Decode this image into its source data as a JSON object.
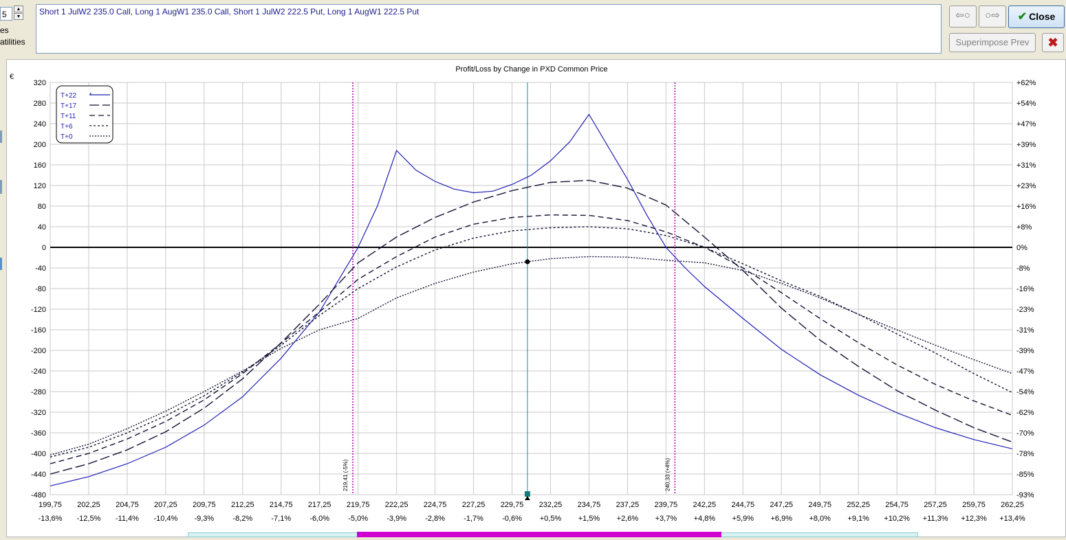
{
  "top": {
    "spinner_value": "5",
    "left_labels": [
      "es",
      "atilities"
    ],
    "strategy_text": "Short 1 JulW2 235.0 Call, Long 1 AugW1 235.0 Call, Short 1 JulW2 222.5 Put, Long 1 AugW1 222.5 Put",
    "close_label": "Close",
    "superimpose_label": "Superimpose Prev"
  },
  "icons": {
    "back": "back-arrow-icon",
    "forward": "forward-arrow-icon",
    "close": "checkmark-icon",
    "cancel": "x-icon"
  },
  "chart_data": {
    "type": "line",
    "title": "Profit/Loss by Change in PXD Common Price",
    "currency_symbol": "€",
    "xlim": [
      199.75,
      262.25
    ],
    "ylim": [
      -480,
      320
    ],
    "x_ticks": [
      199.75,
      202.25,
      204.75,
      207.25,
      209.75,
      212.25,
      214.75,
      217.25,
      219.75,
      222.25,
      224.75,
      227.25,
      229.75,
      232.25,
      234.75,
      237.25,
      239.75,
      242.25,
      244.75,
      247.25,
      249.75,
      252.25,
      254.75,
      257.25,
      259.75,
      262.25
    ],
    "x_tick_labels": [
      "199,75",
      "202,25",
      "204,75",
      "207,25",
      "209,75",
      "212,25",
      "214,75",
      "217,25",
      "219,75",
      "222,25",
      "224,75",
      "227,25",
      "229,75",
      "232,25",
      "234,75",
      "237,25",
      "239,75",
      "242,25",
      "244,75",
      "247,25",
      "249,75",
      "252,25",
      "254,75",
      "257,25",
      "259,75",
      "262,25"
    ],
    "x_pct_labels": [
      "-13,6%",
      "-12,5%",
      "-11,4%",
      "-10,4%",
      "-9,3%",
      "-8,2%",
      "-7,1%",
      "-6,0%",
      "-5,0%",
      "-3,9%",
      "-2,8%",
      "-1,7%",
      "-0,6%",
      "+0,5%",
      "+1,5%",
      "+2,6%",
      "+3,7%",
      "+4,8%",
      "+5,9%",
      "+6,9%",
      "+8,0%",
      "+9,1%",
      "+10,2%",
      "+11,3%",
      "+12,3%",
      "+13,4%"
    ],
    "y_ticks": [
      320,
      280,
      240,
      200,
      160,
      120,
      80,
      40,
      0,
      -40,
      -80,
      -120,
      -160,
      -200,
      -240,
      -280,
      -320,
      -360,
      -400,
      -440,
      -480
    ],
    "y_tick_labels": [
      "320",
      "280",
      "240",
      "200",
      "160",
      "120",
      "80",
      "40",
      "0",
      "-40",
      "-80",
      "-120",
      "-160",
      "-200",
      "-240",
      "-280",
      "-320",
      "-360",
      "-400",
      "-440",
      "-480"
    ],
    "y_right_labels": [
      "+62%",
      "+54%",
      "+47%",
      "+39%",
      "+31%",
      "+23%",
      "+16%",
      "+8%",
      "0%",
      "-8%",
      "-16%",
      "-23%",
      "-31%",
      "-39%",
      "-47%",
      "-54%",
      "-62%",
      "-70%",
      "-78%",
      "-85%",
      "-93%"
    ],
    "grid": true,
    "legend_position": "top-left",
    "series": [
      {
        "name": "T+22",
        "marker": "*",
        "style": "solid",
        "x": [
          199.75,
          202.25,
          204.75,
          207.25,
          209.75,
          212.25,
          214.75,
          217.25,
          219.75,
          221.0,
          222.25,
          223.5,
          224.75,
          226.0,
          227.25,
          228.5,
          229.75,
          231.0,
          232.25,
          233.5,
          234.75,
          236.0,
          237.25,
          238.5,
          239.75,
          241.0,
          242.25,
          244.75,
          247.25,
          249.75,
          252.25,
          254.75,
          257.25,
          259.75,
          262.25
        ],
        "y": [
          -463,
          -445,
          -420,
          -388,
          -345,
          -290,
          -215,
          -125,
          0,
          80,
          188,
          150,
          128,
          113,
          106,
          109,
          122,
          140,
          168,
          205,
          258,
          195,
          132,
          63,
          0,
          -40,
          -76,
          -138,
          -198,
          -247,
          -287,
          -321,
          -350,
          -373,
          -391
        ]
      },
      {
        "name": "T+17",
        "style": "longdash",
        "x": [
          199.75,
          202.25,
          204.75,
          207.25,
          209.75,
          212.25,
          214.75,
          217.25,
          219.75,
          222.25,
          224.75,
          227.25,
          229.75,
          232.25,
          234.75,
          237.25,
          239.75,
          242.25,
          244.75,
          247.25,
          249.75,
          252.25,
          254.75,
          257.25,
          259.75,
          262.25
        ],
        "y": [
          -440,
          -420,
          -393,
          -358,
          -312,
          -255,
          -185,
          -110,
          -30,
          20,
          58,
          88,
          110,
          126,
          130,
          115,
          82,
          20,
          -45,
          -118,
          -180,
          -231,
          -278,
          -316,
          -350,
          -378
        ]
      },
      {
        "name": "T+11",
        "style": "dash",
        "x": [
          199.75,
          202.25,
          204.75,
          207.25,
          209.75,
          212.25,
          214.75,
          217.25,
          219.75,
          222.25,
          224.75,
          227.25,
          229.75,
          232.25,
          234.75,
          237.25,
          239.75,
          242.25,
          244.75,
          247.25,
          249.75,
          252.25,
          254.75,
          257.25,
          259.75,
          262.25
        ],
        "y": [
          -420,
          -400,
          -372,
          -338,
          -296,
          -245,
          -186,
          -125,
          -62,
          -18,
          20,
          45,
          58,
          63,
          62,
          52,
          30,
          0,
          -40,
          -88,
          -138,
          -185,
          -228,
          -266,
          -298,
          -326
        ]
      },
      {
        "name": "T+6",
        "style": "dot",
        "x": [
          199.75,
          202.25,
          204.75,
          207.25,
          209.75,
          212.25,
          214.75,
          217.25,
          219.75,
          222.25,
          224.75,
          227.25,
          229.75,
          232.25,
          234.75,
          237.25,
          239.75,
          242.25,
          244.75,
          247.25,
          249.75,
          252.25,
          254.75,
          257.25,
          259.75,
          262.25
        ],
        "y": [
          -407,
          -388,
          -360,
          -327,
          -288,
          -242,
          -190,
          -132,
          -80,
          -38,
          -5,
          18,
          32,
          38,
          40,
          36,
          23,
          0,
          -32,
          -65,
          -95,
          -130,
          -168,
          -205,
          -245,
          -282
        ]
      },
      {
        "name": "T+0",
        "style": "densedot",
        "x": [
          199.75,
          202.25,
          204.75,
          207.25,
          209.75,
          212.25,
          214.75,
          217.25,
          219.75,
          222.25,
          224.75,
          227.25,
          229.75,
          232.25,
          234.75,
          237.25,
          239.75,
          242.25,
          244.75,
          247.25,
          249.75,
          252.25,
          254.75,
          257.25,
          259.75,
          262.25
        ],
        "y": [
          -403,
          -382,
          -352,
          -318,
          -280,
          -240,
          -196,
          -160,
          -138,
          -98,
          -70,
          -48,
          -32,
          -22,
          -18,
          -19,
          -25,
          -30,
          -45,
          -70,
          -98,
          -130,
          -160,
          -190,
          -218,
          -245
        ]
      }
    ],
    "breakeven_lines": [
      {
        "x": 219.41,
        "label": "219,41 (-5%)"
      },
      {
        "x": 240.33,
        "label": "240,33 (+4%)"
      }
    ],
    "current_price_x": 230.75,
    "current_point": {
      "x": 230.75,
      "y": -28
    }
  }
}
